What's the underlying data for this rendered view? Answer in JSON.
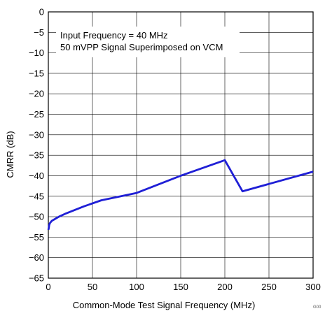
{
  "chart_data": {
    "type": "line",
    "xlabel": "Common-Mode Test Signal Frequency (MHz)",
    "ylabel": "CMRR (dB)",
    "xlim": [
      0,
      300
    ],
    "ylim": [
      -65,
      0
    ],
    "xticks": [
      "0",
      "50",
      "100",
      "150",
      "200",
      "250",
      "300"
    ],
    "yticks": [
      "0",
      "−5",
      "−10",
      "−15",
      "−20",
      "−25",
      "−30",
      "−35",
      "−40",
      "−45",
      "−50",
      "−55",
      "−60",
      "−65"
    ],
    "grid": true,
    "annotations": [
      "Input Frequency = 40 MHz",
      "50 mVPP Signal Superimposed on VCM"
    ],
    "figure_code": "G00",
    "series": [
      {
        "color": "#1f1fd6",
        "x": [
          0,
          0.5,
          1,
          2,
          4,
          8,
          12,
          20,
          40,
          60,
          100,
          150,
          200,
          220,
          250,
          300
        ],
        "y": [
          -53.2,
          -52.8,
          -52.0,
          -51.5,
          -51.0,
          -50.5,
          -50.0,
          -49.2,
          -47.5,
          -46.0,
          -44.2,
          -40.0,
          -36.2,
          -43.8,
          -42.0,
          -39.0
        ]
      }
    ]
  }
}
